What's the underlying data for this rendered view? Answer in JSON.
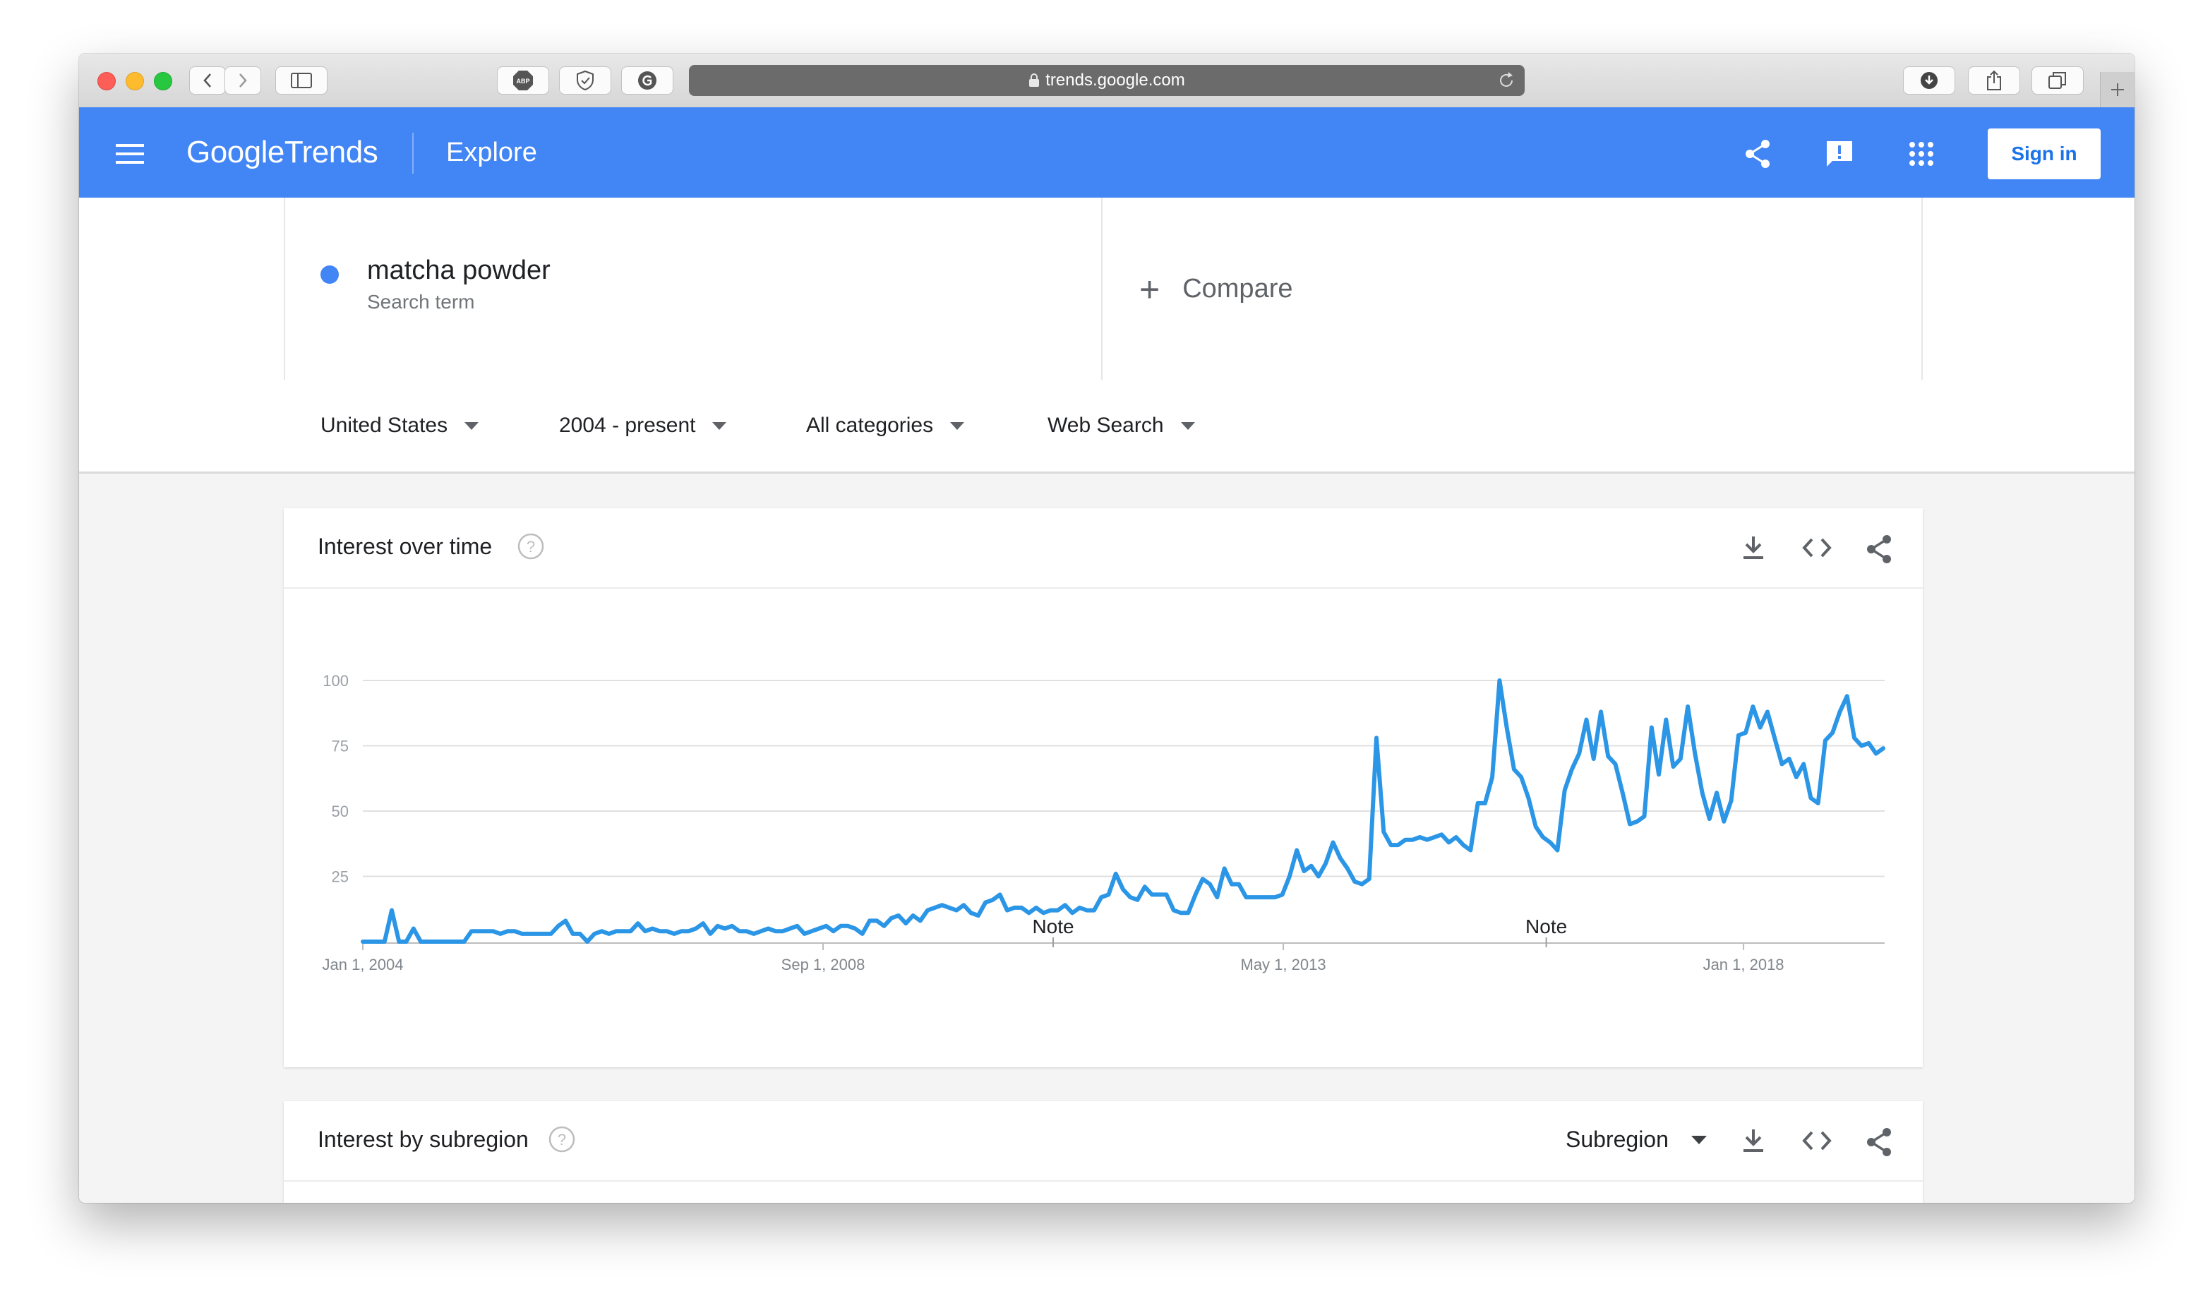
{
  "browser": {
    "url": "trends.google.com"
  },
  "header": {
    "logo_google": "Google",
    "logo_trends": "Trends",
    "section": "Explore",
    "signin_label": "Sign in"
  },
  "search": {
    "term": "matcha powder",
    "term_type": "Search term",
    "term_color": "#4285f4",
    "compare_label": "Compare"
  },
  "filters": {
    "region": "United States",
    "time": "2004 - present",
    "category": "All categories",
    "property": "Web Search"
  },
  "interest_card": {
    "title": "Interest over time"
  },
  "subregion_card": {
    "title": "Interest by subregion",
    "selector": "Subregion"
  },
  "colors": {
    "brand_blue": "#4285f4",
    "line_blue": "#2b95e6"
  },
  "chart_data": {
    "type": "line",
    "title": "Interest over time",
    "y_ticks": [
      "100",
      "75",
      "50",
      "25"
    ],
    "x_tick_labels": [
      "Jan 1, 2004",
      "Sep 1, 2008",
      "May 1, 2013",
      "Jan 1, 2018"
    ],
    "ylim": [
      0,
      100
    ],
    "x_start": "2004-01",
    "x_end": "2019-06",
    "annotations": [
      {
        "label": "Note",
        "date": "2011-01"
      },
      {
        "label": "Note",
        "date": "2016-01"
      }
    ],
    "series": [
      {
        "name": "matcha powder",
        "values": [
          0,
          0,
          0,
          0,
          12,
          0,
          0,
          5,
          0,
          0,
          0,
          0,
          0,
          0,
          0,
          4,
          4,
          4,
          4,
          3,
          4,
          4,
          3,
          3,
          3,
          3,
          3,
          6,
          8,
          3,
          3,
          0,
          3,
          4,
          3,
          4,
          4,
          4,
          7,
          4,
          5,
          4,
          4,
          3,
          4,
          4,
          5,
          7,
          3,
          6,
          5,
          6,
          4,
          4,
          3,
          4,
          5,
          4,
          4,
          5,
          6,
          3,
          4,
          5,
          6,
          4,
          6,
          6,
          5,
          3,
          8,
          8,
          6,
          9,
          10,
          7,
          10,
          8,
          12,
          13,
          14,
          13,
          12,
          14,
          11,
          10,
          15,
          16,
          18,
          12,
          13,
          13,
          11,
          13,
          11,
          12,
          12,
          14,
          11,
          13,
          12,
          12,
          17,
          18,
          26,
          20,
          17,
          16,
          21,
          18,
          18,
          18,
          12,
          11,
          11,
          18,
          24,
          22,
          17,
          28,
          22,
          22,
          17,
          17,
          17,
          17,
          17,
          18,
          25,
          35,
          27,
          29,
          25,
          30,
          38,
          32,
          28,
          23,
          22,
          24,
          78,
          42,
          37,
          37,
          39,
          39,
          40,
          39,
          40,
          41,
          38,
          40,
          37,
          35,
          53,
          53,
          63,
          100,
          82,
          66,
          63,
          55,
          44,
          40,
          38,
          35,
          58,
          66,
          72,
          85,
          70,
          88,
          71,
          68,
          57,
          45,
          46,
          48,
          82,
          64,
          85,
          67,
          70,
          90,
          72,
          57,
          47,
          57,
          46,
          54,
          79,
          80,
          90,
          82,
          88,
          78,
          68,
          70,
          63,
          68,
          55,
          53,
          77,
          80,
          88,
          94,
          78,
          75,
          76,
          72,
          74
        ]
      }
    ]
  }
}
